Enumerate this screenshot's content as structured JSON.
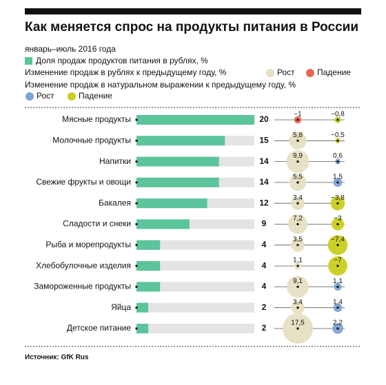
{
  "chart_data": {
    "type": "bar",
    "title": "Как меняется спрос на продукты питания в России",
    "subtitle": "январь–июль 2016 года",
    "source": "Источник: GfK Rus",
    "categories": [
      "Мясные продукты",
      "Молочные продукты",
      "Напитки",
      "Свежие фрукты и овощи",
      "Бакалея",
      "Сладости и снеки",
      "Рыба и морепродукты",
      "Хлебобулочные изделия",
      "Замороженные продукты",
      "Яйца",
      "Детское питание"
    ],
    "xlim": [
      0,
      20
    ],
    "series": [
      {
        "name": "Доля продаж продуктов питания в рублях, %",
        "color": "#5cc49a",
        "values": [
          20,
          15,
          14,
          14,
          12,
          9,
          4,
          4,
          4,
          2,
          2
        ]
      }
    ],
    "rub_change": {
      "name": "Изменение продаж в рублях к предыдущему году, %",
      "growth_label": "Рост",
      "decline_label": "Падение",
      "growth_color": "#e6dfc2",
      "decline_color": "#e8664f",
      "values": [
        -1,
        5.8,
        9.9,
        5.5,
        3.4,
        7.2,
        3.5,
        1.1,
        9.1,
        3.4,
        17.5
      ],
      "value_labels": [
        "−1",
        "5,8",
        "9,9",
        "5,5",
        "3,4",
        "7,2",
        "3,5",
        "1,1",
        "9,1",
        "3,4",
        "17,5"
      ]
    },
    "volume_change": {
      "name": "Изменение продаж в натуральном выражении к предыдущему году, %",
      "growth_label": "Рост",
      "decline_label": "Падение",
      "growth_color": "#7ea4d6",
      "decline_color": "#c9cf1f",
      "values": [
        -0.8,
        -0.5,
        0.6,
        1.5,
        -3.8,
        -3,
        -7.4,
        -7,
        1.1,
        1.4,
        2.2
      ],
      "value_labels": [
        "−0,8",
        "−0,5",
        "0,6",
        "1,5",
        "−3,8",
        "−3",
        "−7,4",
        "−7",
        "1,1",
        "1,4",
        "2,2"
      ]
    }
  }
}
